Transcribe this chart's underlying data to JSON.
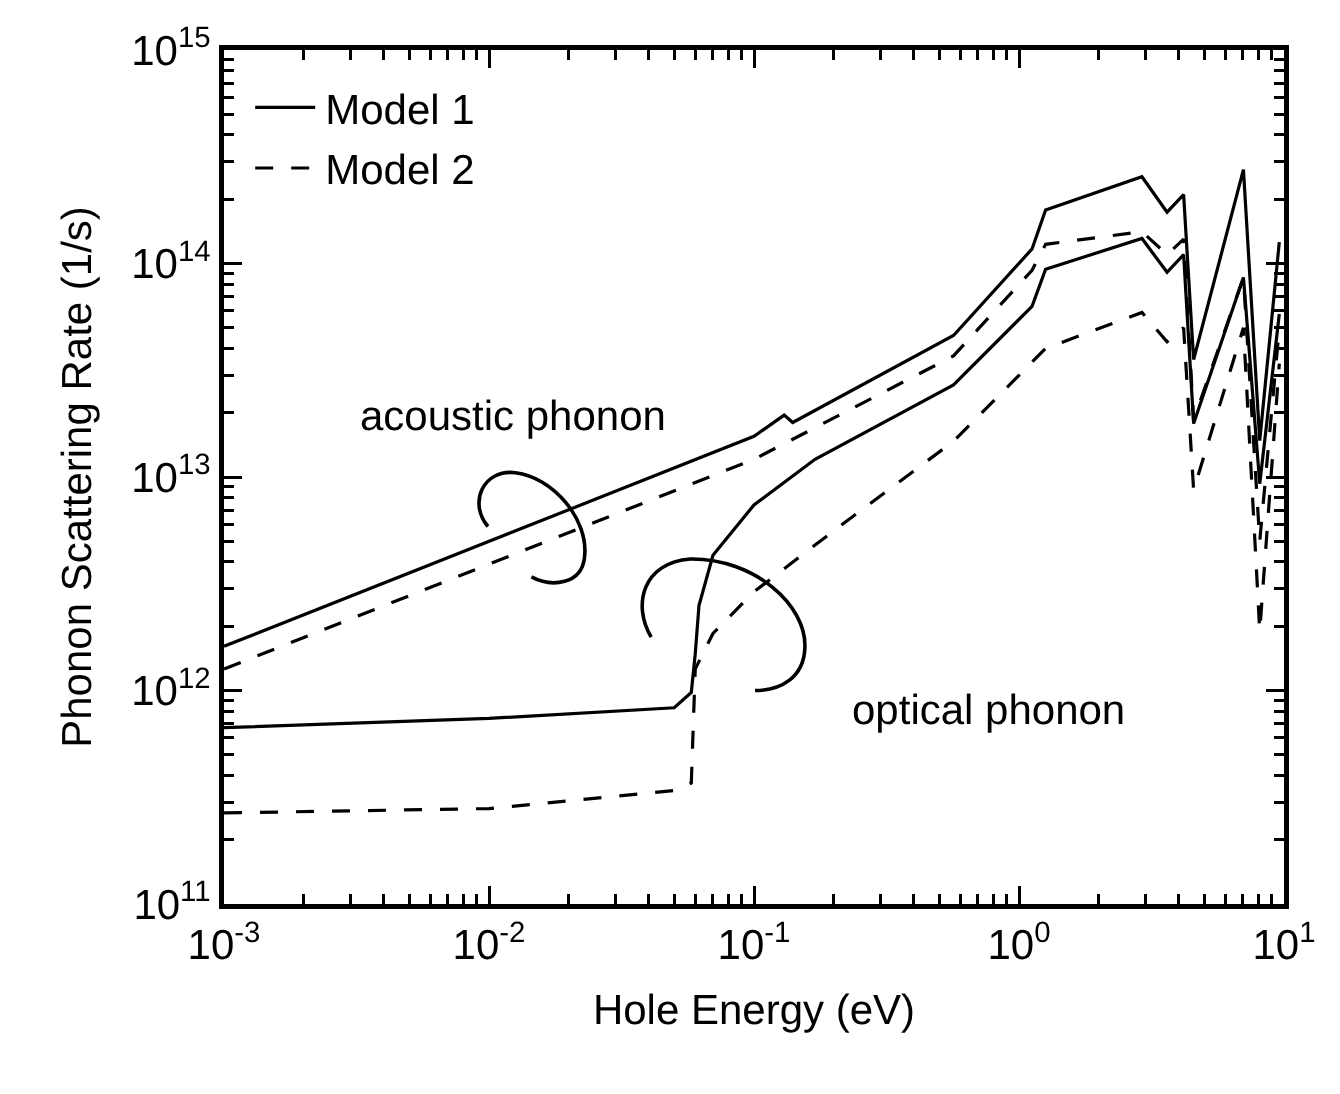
{
  "chart_data": {
    "type": "line",
    "xlabel": "Hole Energy (eV)",
    "ylabel": "Phonon Scattering Rate (1/s)",
    "log": "xy",
    "grid": false,
    "legend": "top left",
    "marker": "none",
    "xlim": [
      0.001,
      10
    ],
    "ylim": [
      100000000000.0,
      1000000000000000.0
    ],
    "xticks": [
      {
        "value": 0.001,
        "label": "10$^{-3}$"
      },
      {
        "value": 0.01,
        "label": "10$^{-2}$"
      },
      {
        "value": 0.1,
        "label": "10$^{-1}$"
      },
      {
        "value": 1,
        "label": "10$^{0}$"
      },
      {
        "value": 10,
        "label": "10$^{1}$"
      }
    ],
    "yticks": [
      {
        "value": 100000000000.0,
        "label": "10$^{11}$"
      },
      {
        "value": 1000000000000.0,
        "label": "10$^{12}$"
      },
      {
        "value": 10000000000000.0,
        "label": "10$^{13}$"
      },
      {
        "value": 100000000000000.0,
        "label": "10$^{14}$"
      },
      {
        "value": 1000000000000000.0,
        "label": "10$^{15}$"
      }
    ],
    "series": [
      {
        "name": "Model 1",
        "color": "#000000",
        "line_style": "solid",
        "x": [
          0.001,
          0.1,
          0.13,
          0.14,
          0.566,
          1.12,
          1.26,
          2.91,
          3.62,
          4.18,
          4.56,
          7.03,
          8.1,
          9.6
        ],
        "values": [
          1610000000000.0,
          15500000000000.0,
          19500000000000.0,
          18000000000000.0,
          46000000000000.0,
          117000000000000.0,
          178000000000000.0,
          255000000000000.0,
          174000000000000.0,
          210000000000000.0,
          35500000000000.0,
          275000000000000.0,
          14800000000000.0,
          126000000000000.0
        ]
      },
      {
        "name": "Model 2",
        "color": "#000000",
        "line_style": "dashed",
        "x": [
          0.001,
          0.1,
          0.566,
          1.12,
          1.26,
          2.91,
          3.62,
          4.18,
          4.56,
          7.03,
          8.1,
          9.6
        ],
        "values": [
          1260000000000.0,
          12100000000000.0,
          36900000000000.0,
          93000000000000.0,
          123000000000000.0,
          141000000000000.0,
          110000000000000.0,
          130000000000000.0,
          18500000000000.0,
          86000000000000.0,
          5000000000000.0,
          50000000000000.0
        ]
      },
      {
        "color": "#000000",
        "line_style": "solid",
        "x": [
          0.001,
          0.01,
          0.05,
          0.058,
          0.06,
          0.062,
          0.07,
          0.1,
          0.17,
          0.566,
          1.12,
          1.26,
          2.91,
          3.62,
          4.18,
          4.56,
          7.03,
          8.1,
          9.6
        ],
        "values": [
          670000000000.0,
          740000000000.0,
          830000000000.0,
          980000000000.0,
          1480000000000.0,
          2500000000000.0,
          4300000000000.0,
          7400000000000.0,
          12100000000000.0,
          27000000000000.0,
          63000000000000.0,
          94000000000000.0,
          131000000000000.0,
          91000000000000.0,
          110000000000000.0,
          17800000000000.0,
          86000000000000.0,
          9300000000000.0,
          58000000000000.0
        ]
      },
      {
        "color": "#000000",
        "line_style": "dashed",
        "x": [
          0.001,
          0.01,
          0.05,
          0.058,
          0.06,
          0.07,
          0.1,
          0.2,
          0.566,
          1.26,
          2.91,
          3.62,
          4.18,
          4.56,
          7.03,
          8.1,
          9.6
        ],
        "values": [
          267000000000.0,
          280000000000.0,
          340000000000.0,
          369000000000.0,
          1260000000000.0,
          1850000000000.0,
          2900000000000.0,
          5600000000000.0,
          14700000000000.0,
          40000000000000.0,
          59000000000000.0,
          43000000000000.0,
          50000000000000.0,
          8700000000000.0,
          50000000000000.0,
          1900000000000.0,
          34000000000000.0
        ]
      }
    ],
    "annotations": [
      "acoustic phonon",
      "optical phonon"
    ]
  }
}
